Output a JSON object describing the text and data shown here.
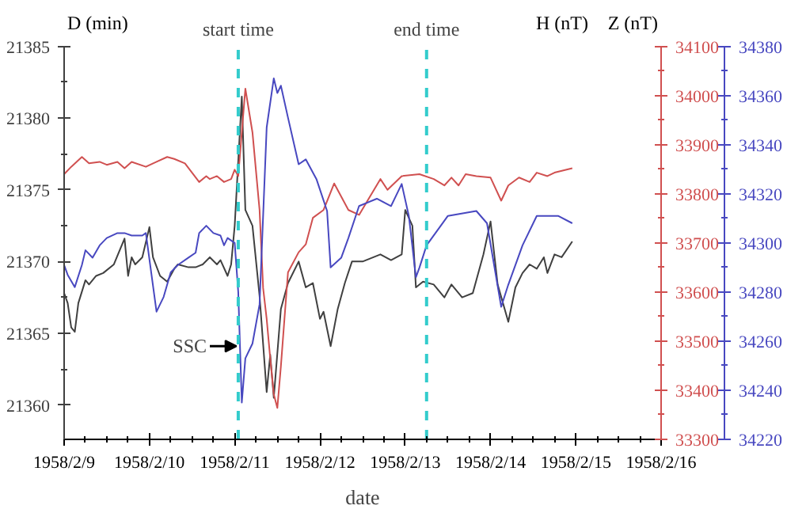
{
  "chart_data": {
    "type": "line",
    "xlabel": "date",
    "ylabel": "D (min)",
    "y2label": "H (nT)",
    "y3label": "Z (nT)",
    "xlim": [
      "1958-02-09",
      "1958-02-16"
    ],
    "xticks": [
      {
        "value": "1958-02-09",
        "label": "1958/2/9"
      },
      {
        "value": "1958-02-10",
        "label": "1958/2/10"
      },
      {
        "value": "1958-02-11",
        "label": "1958/2/11"
      },
      {
        "value": "1958-02-12",
        "label": "1958/2/12"
      },
      {
        "value": "1958-02-13",
        "label": "1958/2/13"
      },
      {
        "value": "1958-02-14",
        "label": "1958/2/14"
      },
      {
        "value": "1958-02-15",
        "label": "1958/2/15"
      },
      {
        "value": "1958-02-16",
        "label": "1958/2/16"
      }
    ],
    "ylim": [
      21357.6,
      21385
    ],
    "yticks": [
      21360,
      21365,
      21370,
      21375,
      21380,
      21385
    ],
    "y2lim": [
      33300,
      34100
    ],
    "y2ticks": [
      33300,
      33400,
      33500,
      33600,
      33700,
      33800,
      33900,
      34000,
      34100
    ],
    "y3lim": [
      34220,
      34380
    ],
    "y3ticks": [
      34220,
      34240,
      34260,
      34280,
      34300,
      34320,
      34340,
      34360,
      34380
    ],
    "grid": false,
    "line_style": "solid",
    "marker": "none",
    "ref_lines": [
      {
        "axis": "x",
        "value": "1958-02-11T01:00",
        "label": "start time",
        "color": "#33cccc",
        "line_style": "dashed"
      },
      {
        "axis": "x",
        "value": "1958-02-13T06:00",
        "label": "end time",
        "color": "#33cccc",
        "line_style": "dashed"
      }
    ],
    "annotations": [
      {
        "text": "SSC",
        "x": "1958-02-11T01:00",
        "y": 21364.1
      }
    ],
    "series": [
      {
        "color": "#404040",
        "x": [
          "1958-02-09T00:00",
          "1958-02-09T01:00",
          "1958-02-09T02:00",
          "1958-02-09T03:00",
          "1958-02-09T04:00",
          "1958-02-09T06:00",
          "1958-02-09T07:00",
          "1958-02-09T09:00",
          "1958-02-09T11:00",
          "1958-02-09T14:00",
          "1958-02-09T17:00",
          "1958-02-09T18:00",
          "1958-02-09T19:00",
          "1958-02-09T20:00",
          "1958-02-09T22:00",
          "1958-02-10T00:00",
          "1958-02-10T01:00",
          "1958-02-10T03:00",
          "1958-02-10T05:00",
          "1958-02-10T07:00",
          "1958-02-10T08:00",
          "1958-02-10T11:00",
          "1958-02-10T13:00",
          "1958-02-10T15:00",
          "1958-02-10T17:00",
          "1958-02-10T19:00",
          "1958-02-10T20:00",
          "1958-02-10T22:00",
          "1958-02-10T23:00",
          "1958-02-11T00:00",
          "1958-02-11T02:00",
          "1958-02-11T03:00",
          "1958-02-11T05:00",
          "1958-02-11T07:00",
          "1958-02-11T09:00",
          "1958-02-11T10:00",
          "1958-02-11T11:00",
          "1958-02-11T13:00",
          "1958-02-11T15:00",
          "1958-02-11T18:00",
          "1958-02-11T20:00",
          "1958-02-11T22:00",
          "1958-02-12T00:00",
          "1958-02-12T01:00",
          "1958-02-12T03:00",
          "1958-02-12T05:00",
          "1958-02-12T07:00",
          "1958-02-12T09:00",
          "1958-02-12T12:00",
          "1958-02-12T17:00",
          "1958-02-12T20:00",
          "1958-02-12T23:00",
          "1958-02-13T00:00",
          "1958-02-13T02:00",
          "1958-02-13T03:00",
          "1958-02-13T05:00",
          "1958-02-13T08:00",
          "1958-02-13T11:00",
          "1958-02-13T13:00",
          "1958-02-13T16:00",
          "1958-02-13T19:00",
          "1958-02-13T22:00",
          "1958-02-14T00:00",
          "1958-02-14T02:00",
          "1958-02-14T05:00",
          "1958-02-14T07:00",
          "1958-02-14T09:00",
          "1958-02-14T11:00",
          "1958-02-14T13:00",
          "1958-02-14T15:00",
          "1958-02-14T16:00",
          "1958-02-14T18:00",
          "1958-02-14T20:00",
          "1958-02-14T23:00"
        ],
        "values": [
          21367.8,
          21367.1,
          21365.4,
          21365.1,
          21367.1,
          21368.7,
          21368.4,
          21369.0,
          21369.2,
          21369.8,
          21371.6,
          21369.0,
          21370.3,
          21369.8,
          21370.3,
          21372.4,
          21370.3,
          21369.0,
          21368.6,
          21369.5,
          21369.8,
          21369.6,
          21369.6,
          21369.8,
          21370.3,
          21369.8,
          21370.1,
          21369.0,
          21369.8,
          21372.5,
          21381.5,
          21373.6,
          21372.5,
          21367.6,
          21360.9,
          21363.5,
          21360.5,
          21366.7,
          21368.5,
          21370.0,
          21368.2,
          21368.5,
          21366.0,
          21366.5,
          21364.1,
          21366.7,
          21368.5,
          21370.0,
          21370.0,
          21370.5,
          21370.1,
          21370.5,
          21373.6,
          21372.5,
          21368.2,
          21368.6,
          21368.4,
          21367.5,
          21368.4,
          21367.5,
          21367.8,
          21370.5,
          21372.8,
          21368.4,
          21365.8,
          21368.2,
          21369.2,
          21369.8,
          21369.5,
          21370.3,
          21369.2,
          21370.5,
          21370.3,
          21371.4
        ]
      },
      {
        "color": "#d05050",
        "axis": "y2",
        "x": [
          "1958-02-09T00:00",
          "1958-02-09T02:00",
          "1958-02-09T05:00",
          "1958-02-09T07:00",
          "1958-02-09T10:00",
          "1958-02-09T12:00",
          "1958-02-09T15:00",
          "1958-02-09T17:00",
          "1958-02-09T19:00",
          "1958-02-09T23:00",
          "1958-02-10T02:00",
          "1958-02-10T05:00",
          "1958-02-10T07:00",
          "1958-02-10T10:00",
          "1958-02-10T12:00",
          "1958-02-10T14:00",
          "1958-02-10T16:00",
          "1958-02-10T17:00",
          "1958-02-10T19:00",
          "1958-02-10T21:00",
          "1958-02-10T23:00",
          "1958-02-11T00:00",
          "1958-02-11T01:00",
          "1958-02-11T03:00",
          "1958-02-11T05:00",
          "1958-02-11T07:00",
          "1958-02-11T08:00",
          "1958-02-11T09:00",
          "1958-02-11T10:00",
          "1958-02-11T11:00",
          "1958-02-11T12:00",
          "1958-02-11T13:00",
          "1958-02-11T14:00",
          "1958-02-11T15:00",
          "1958-02-11T18:00",
          "1958-02-11T20:00",
          "1958-02-11T22:00",
          "1958-02-12T01:00",
          "1958-02-12T04:00",
          "1958-02-12T08:00",
          "1958-02-12T11:00",
          "1958-02-12T17:00",
          "1958-02-12T19:00",
          "1958-02-12T23:00",
          "1958-02-13T04:00",
          "1958-02-13T08:00",
          "1958-02-13T11:00",
          "1958-02-13T13:00",
          "1958-02-13T15:00",
          "1958-02-13T17:00",
          "1958-02-13T20:00",
          "1958-02-14T00:00",
          "1958-02-14T03:00",
          "1958-02-14T05:00",
          "1958-02-14T08:00",
          "1958-02-14T11:00",
          "1958-02-14T13:00",
          "1958-02-14T16:00",
          "1958-02-14T18:00",
          "1958-02-14T23:00"
        ],
        "values": [
          33840,
          33855,
          33875,
          33862,
          33865,
          33859,
          33865,
          33852,
          33865,
          33855,
          33865,
          33875,
          33871,
          33862,
          33843,
          33824,
          33836,
          33830,
          33836,
          33824,
          33830,
          33849,
          33836,
          34014,
          33925,
          33767,
          33608,
          33545,
          33465,
          33392,
          33364,
          33449,
          33545,
          33640,
          33681,
          33697,
          33751,
          33767,
          33821,
          33767,
          33757,
          33830,
          33808,
          33836,
          33840,
          33830,
          33817,
          33833,
          33817,
          33840,
          33836,
          33833,
          33786,
          33817,
          33833,
          33824,
          33843,
          33836,
          33843,
          33852
        ]
      },
      {
        "color": "#4848c0",
        "axis": "y3",
        "x": [
          "1958-02-09T00:00",
          "1958-02-09T01:00",
          "1958-02-09T03:00",
          "1958-02-09T05:00",
          "1958-02-09T06:00",
          "1958-02-09T08:00",
          "1958-02-09T10:00",
          "1958-02-09T12:00",
          "1958-02-09T15:00",
          "1958-02-09T17:00",
          "1958-02-09T19:00",
          "1958-02-09T22:00",
          "1958-02-09T23:00",
          "1958-02-10T02:00",
          "1958-02-10T04:00",
          "1958-02-10T06:00",
          "1958-02-10T08:00",
          "1958-02-10T11:00",
          "1958-02-10T13:00",
          "1958-02-10T14:00",
          "1958-02-10T16:00",
          "1958-02-10T18:00",
          "1958-02-10T20:00",
          "1958-02-10T21:00",
          "1958-02-10T22:00",
          "1958-02-11T00:00",
          "1958-02-11T01:00",
          "1958-02-11T02:00",
          "1958-02-11T03:00",
          "1958-02-11T05:00",
          "1958-02-11T07:00",
          "1958-02-11T09:00",
          "1958-02-11T11:00",
          "1958-02-11T12:00",
          "1958-02-11T13:00",
          "1958-02-11T15:00",
          "1958-02-11T18:00",
          "1958-02-11T20:00",
          "1958-02-11T23:00",
          "1958-02-12T02:00",
          "1958-02-12T03:00",
          "1958-02-12T06:00",
          "1958-02-12T08:00",
          "1958-02-12T11:00",
          "1958-02-12T16:00",
          "1958-02-12T20:00",
          "1958-02-12T23:00",
          "1958-02-13T01:00",
          "1958-02-13T03:00",
          "1958-02-13T04:00",
          "1958-02-13T06:00",
          "1958-02-13T11:00",
          "1958-02-13T12:00",
          "1958-02-13T20:00",
          "1958-02-13T23:00",
          "1958-02-14T03:00",
          "1958-02-14T05:00",
          "1958-02-14T09:00",
          "1958-02-14T13:00",
          "1958-02-14T19:00",
          "1958-02-14T23:00"
        ],
        "values": [
          34291,
          34287,
          34282,
          34291,
          34297,
          34294,
          34299,
          34302,
          34304,
          34304,
          34303,
          34303,
          34304,
          34272,
          34278,
          34288,
          34291,
          34294,
          34296,
          34304,
          34307,
          34304,
          34303,
          34299,
          34302,
          34300,
          34280,
          34235,
          34253,
          34259,
          34275,
          34347,
          34367,
          34361,
          34364,
          34351,
          34332,
          34334,
          34326,
          34313,
          34290,
          34294,
          34302,
          34315,
          34318,
          34315,
          34324,
          34311,
          34286,
          34290,
          34299,
          34309,
          34311,
          34313,
          34308,
          34274,
          34283,
          34299,
          34311,
          34311,
          34308
        ]
      }
    ]
  }
}
